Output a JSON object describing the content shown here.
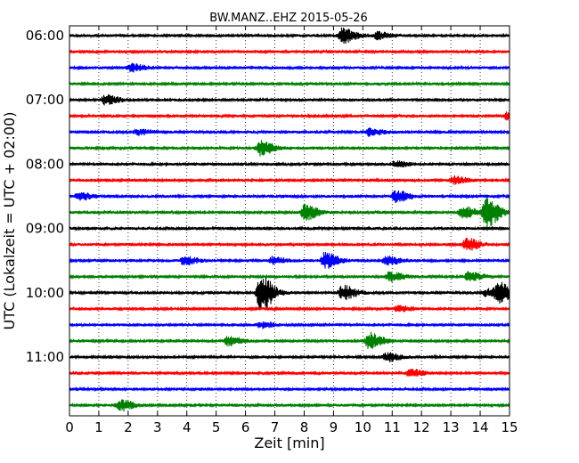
{
  "chart_data": {
    "type": "line",
    "title": "BW.MANZ..EHZ 2015-05-26",
    "xlabel": "Zeit  [min]",
    "ylabel": "UTC (Lokalzeit = UTC + 02:00)",
    "xlim": [
      0,
      15
    ],
    "x_ticks": [
      "0",
      "1",
      "2",
      "3",
      "4",
      "5",
      "6",
      "7",
      "8",
      "9",
      "10",
      "11",
      "12",
      "13",
      "14",
      "15"
    ],
    "y_tick_labels": [
      "06:00",
      "07:00",
      "08:00",
      "09:00",
      "10:00",
      "11:00"
    ],
    "grid": "vertical dotted lines at each minute",
    "trace_interval_min": 15,
    "trace_colors": [
      "#000000",
      "#ff0000",
      "#0000ff",
      "#008000"
    ],
    "traces": [
      {
        "start": "06:00",
        "events": [
          {
            "t": 9.3,
            "amp": 8
          },
          {
            "t": 10.5,
            "amp": 4
          }
        ]
      },
      {
        "start": "06:15",
        "events": []
      },
      {
        "start": "06:30",
        "events": [
          {
            "t": 2.1,
            "amp": 4
          }
        ]
      },
      {
        "start": "06:45",
        "events": []
      },
      {
        "start": "07:00",
        "events": [
          {
            "t": 1.2,
            "amp": 5
          }
        ]
      },
      {
        "start": "07:15",
        "events": [
          {
            "t": 14.9,
            "amp": 4
          }
        ]
      },
      {
        "start": "07:30",
        "events": [
          {
            "t": 2.3,
            "amp": 3
          },
          {
            "t": 10.2,
            "amp": 4
          }
        ]
      },
      {
        "start": "07:45",
        "events": [
          {
            "t": 6.5,
            "amp": 8
          }
        ]
      },
      {
        "start": "08:00",
        "events": [
          {
            "t": 11.1,
            "amp": 3
          }
        ]
      },
      {
        "start": "08:15",
        "events": [
          {
            "t": 13.1,
            "amp": 4
          }
        ]
      },
      {
        "start": "08:30",
        "events": [
          {
            "t": 11.1,
            "amp": 7
          },
          {
            "t": 0.3,
            "amp": 4
          }
        ]
      },
      {
        "start": "08:45",
        "events": [
          {
            "t": 8.0,
            "amp": 9
          },
          {
            "t": 14.2,
            "amp": 16
          },
          {
            "t": 13.4,
            "amp": 6
          }
        ]
      },
      {
        "start": "09:00",
        "events": []
      },
      {
        "start": "09:15",
        "events": [
          {
            "t": 13.5,
            "amp": 7
          }
        ]
      },
      {
        "start": "09:30",
        "events": [
          {
            "t": 3.9,
            "amp": 5
          },
          {
            "t": 8.7,
            "amp": 9
          },
          {
            "t": 10.8,
            "amp": 5
          },
          {
            "t": 6.9,
            "amp": 4
          }
        ]
      },
      {
        "start": "09:45",
        "events": [
          {
            "t": 10.9,
            "amp": 5
          },
          {
            "t": 13.6,
            "amp": 5
          }
        ]
      },
      {
        "start": "10:00",
        "events": [
          {
            "t": 6.5,
            "amp": 20
          },
          {
            "t": 9.3,
            "amp": 8
          },
          {
            "t": 14.6,
            "amp": 10
          },
          {
            "t": 14.2,
            "amp": 4
          }
        ]
      },
      {
        "start": "10:15",
        "events": [
          {
            "t": 11.2,
            "amp": 3
          }
        ]
      },
      {
        "start": "10:30",
        "events": [
          {
            "t": 6.5,
            "amp": 3
          }
        ]
      },
      {
        "start": "10:45",
        "events": [
          {
            "t": 10.2,
            "amp": 9
          },
          {
            "t": 5.4,
            "amp": 5
          }
        ]
      },
      {
        "start": "11:00",
        "events": [
          {
            "t": 10.8,
            "amp": 5
          }
        ]
      },
      {
        "start": "11:15",
        "events": [
          {
            "t": 11.6,
            "amp": 4
          }
        ]
      },
      {
        "start": "11:30",
        "events": []
      },
      {
        "start": "11:45",
        "events": [
          {
            "t": 1.7,
            "amp": 6
          }
        ]
      }
    ]
  }
}
